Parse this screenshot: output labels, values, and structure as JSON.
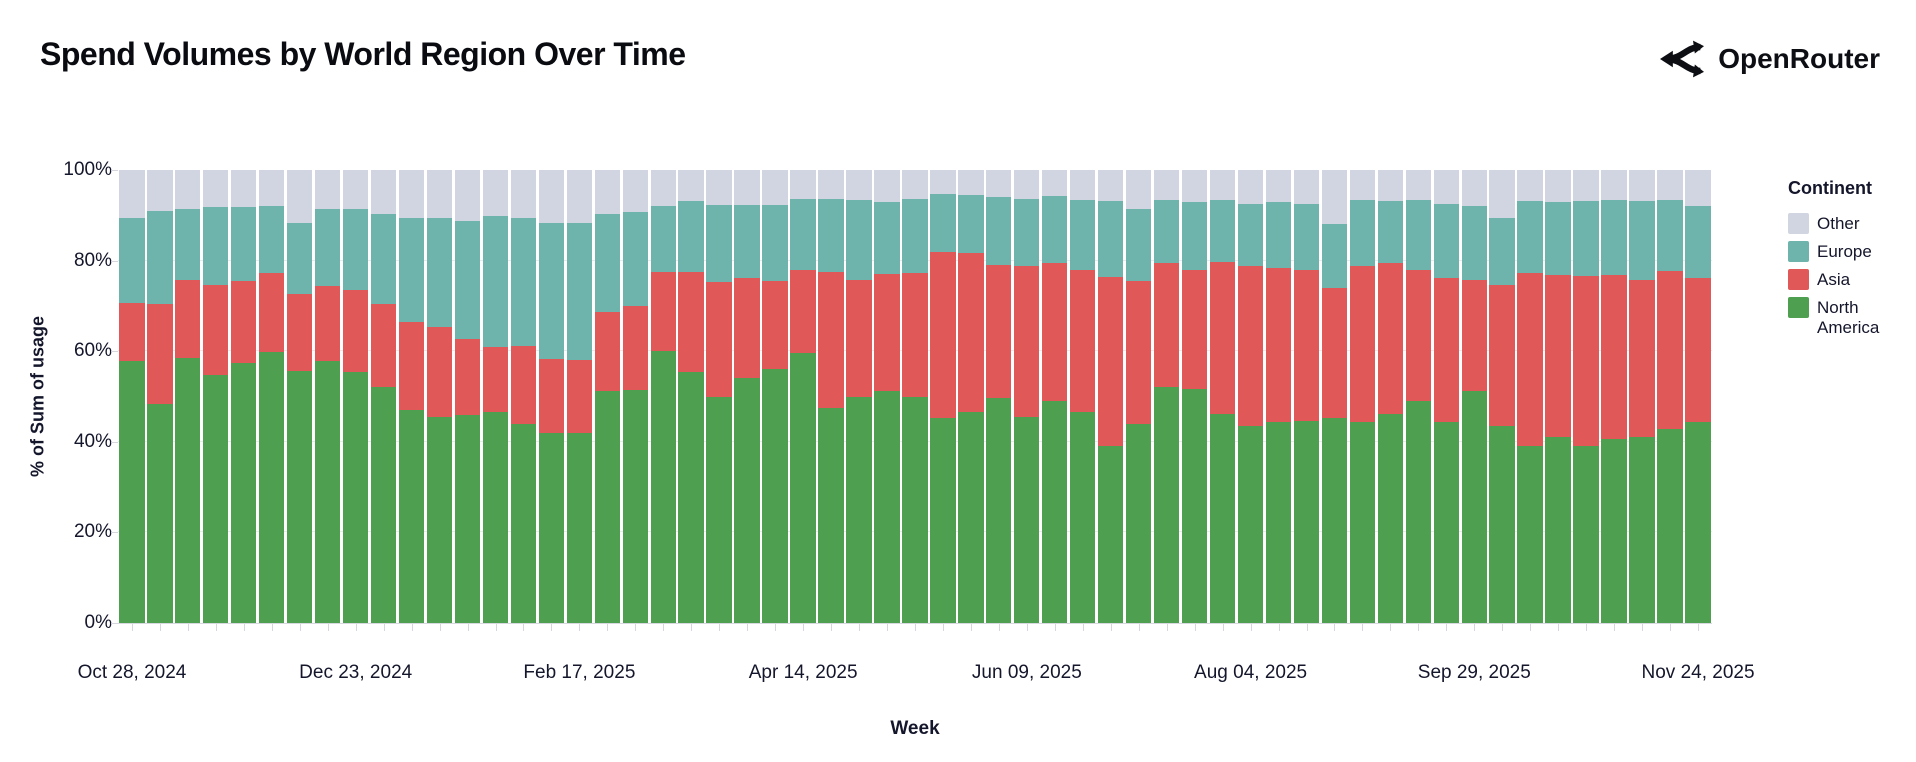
{
  "header": {
    "title": "Spend Volumes by World Region Over Time",
    "brand": "OpenRouter"
  },
  "chart_data": {
    "type": "bar",
    "stacked": true,
    "normalized_to_100_percent": true,
    "title": "Spend Volumes by World Region Over Time",
    "xlabel": "Week",
    "ylabel": "% of Sum of usage",
    "ylim": [
      0,
      100
    ],
    "grid": true,
    "y_tick_labels": [
      "0%",
      "20%",
      "40%",
      "60%",
      "80%",
      "100%"
    ],
    "x_tick_labels": [
      "Oct 28, 2024",
      "Dec 23, 2024",
      "Feb 17, 2025",
      "Apr 14, 2025",
      "Jun 09, 2025",
      "Aug 04, 2025",
      "Sep 29, 2025",
      "Nov 24, 2025"
    ],
    "x_tick_every_n_bars": 8,
    "categories": [
      "Oct 28, 2024",
      "Nov 04, 2024",
      "Nov 11, 2024",
      "Nov 18, 2024",
      "Nov 25, 2024",
      "Dec 02, 2024",
      "Dec 09, 2024",
      "Dec 16, 2024",
      "Dec 23, 2024",
      "Dec 30, 2024",
      "Jan 06, 2025",
      "Jan 13, 2025",
      "Jan 20, 2025",
      "Jan 27, 2025",
      "Feb 03, 2025",
      "Feb 10, 2025",
      "Feb 17, 2025",
      "Feb 24, 2025",
      "Mar 03, 2025",
      "Mar 10, 2025",
      "Mar 17, 2025",
      "Mar 24, 2025",
      "Mar 31, 2025",
      "Apr 07, 2025",
      "Apr 14, 2025",
      "Apr 21, 2025",
      "Apr 28, 2025",
      "May 05, 2025",
      "May 12, 2025",
      "May 19, 2025",
      "May 26, 2025",
      "Jun 02, 2025",
      "Jun 09, 2025",
      "Jun 16, 2025",
      "Jun 23, 2025",
      "Jun 30, 2025",
      "Jul 07, 2025",
      "Jul 14, 2025",
      "Jul 21, 2025",
      "Jul 28, 2025",
      "Aug 04, 2025",
      "Aug 11, 2025",
      "Aug 18, 2025",
      "Aug 25, 2025",
      "Sep 01, 2025",
      "Sep 08, 2025",
      "Sep 15, 2025",
      "Sep 22, 2025",
      "Sep 29, 2025",
      "Oct 06, 2025",
      "Oct 13, 2025",
      "Oct 20, 2025",
      "Oct 27, 2025",
      "Nov 03, 2025",
      "Nov 10, 2025",
      "Nov 17, 2025",
      "Nov 24, 2025"
    ],
    "series": [
      {
        "name": "North America",
        "color": "#4ea050",
        "values": [
          57.9,
          48.3,
          58.6,
          54.7,
          57.4,
          59.9,
          55.7,
          57.9,
          55.5,
          52.0,
          47.0,
          45.5,
          46.0,
          46.5,
          44.0,
          42.0,
          42.0,
          51.3,
          51.5,
          60.0,
          55.5,
          50.0,
          54.0,
          56.0,
          59.5,
          47.5,
          49.8,
          51.3,
          49.8,
          45.2,
          46.6,
          49.6,
          45.4,
          48.9,
          46.5,
          39.0,
          43.9,
          52.2,
          51.6,
          46.1,
          43.5,
          44.4,
          44.6,
          45.2,
          44.4,
          46.1,
          49.1,
          44.3,
          51.3,
          43.5,
          39.1,
          41.0,
          39.1,
          40.6,
          41.0,
          42.8,
          44.3
        ]
      },
      {
        "name": "Asia",
        "color": "#e05858",
        "values": [
          12.8,
          22.2,
          17.2,
          19.9,
          18.2,
          17.3,
          16.9,
          16.5,
          18.0,
          18.4,
          19.4,
          19.9,
          16.7,
          14.4,
          17.2,
          16.3,
          16.1,
          17.3,
          18.5,
          17.4,
          22.0,
          25.3,
          22.1,
          19.5,
          18.4,
          30.0,
          25.9,
          25.7,
          27.4,
          36.7,
          35.0,
          29.4,
          33.4,
          30.6,
          31.5,
          37.4,
          31.6,
          27.3,
          26.3,
          33.6,
          35.3,
          34.0,
          33.4,
          28.8,
          34.4,
          33.3,
          28.8,
          31.8,
          24.5,
          31.2,
          38.1,
          35.8,
          37.5,
          36.3,
          34.8,
          34.9,
          31.8
        ]
      },
      {
        "name": "Europe",
        "color": "#6fb4ac",
        "values": [
          18.8,
          20.5,
          15.7,
          17.3,
          16.3,
          14.8,
          15.6,
          17.1,
          18.0,
          20.0,
          22.9,
          24.1,
          26.1,
          29.0,
          28.3,
          29.9,
          30.1,
          21.8,
          20.8,
          14.7,
          15.7,
          17.0,
          16.2,
          16.8,
          15.7,
          16.2,
          17.7,
          15.9,
          16.4,
          12.8,
          12.9,
          15.0,
          14.8,
          14.8,
          15.4,
          16.8,
          16.0,
          13.9,
          15.1,
          13.7,
          13.8,
          14.5,
          14.6,
          14.1,
          14.6,
          13.8,
          15.5,
          16.5,
          16.3,
          14.6,
          16.0,
          16.2,
          16.6,
          16.5,
          17.4,
          15.7,
          16.0
        ]
      },
      {
        "name": "Other",
        "color": "#d1d5e1",
        "values": [
          10.5,
          9.0,
          8.5,
          8.1,
          8.1,
          8.0,
          11.8,
          8.5,
          8.5,
          9.6,
          10.7,
          10.5,
          11.2,
          10.1,
          10.5,
          11.8,
          11.8,
          9.6,
          9.2,
          7.9,
          6.8,
          7.7,
          7.7,
          7.7,
          6.4,
          6.3,
          6.6,
          7.1,
          6.4,
          5.3,
          5.5,
          6.0,
          6.4,
          5.7,
          6.6,
          6.8,
          8.5,
          6.6,
          7.0,
          6.6,
          7.4,
          7.1,
          7.4,
          11.9,
          6.6,
          6.8,
          6.6,
          7.4,
          7.9,
          10.7,
          6.8,
          7.0,
          6.8,
          6.6,
          6.8,
          6.6,
          7.9
        ]
      }
    ],
    "legend": {
      "title": "Continent",
      "position": "right",
      "entries": [
        {
          "label": "Other",
          "color": "#d1d5e1"
        },
        {
          "label": "Europe",
          "color": "#6fb4ac"
        },
        {
          "label": "Asia",
          "color": "#e05858"
        },
        {
          "label": "North America",
          "color": "#4ea050"
        }
      ]
    }
  }
}
